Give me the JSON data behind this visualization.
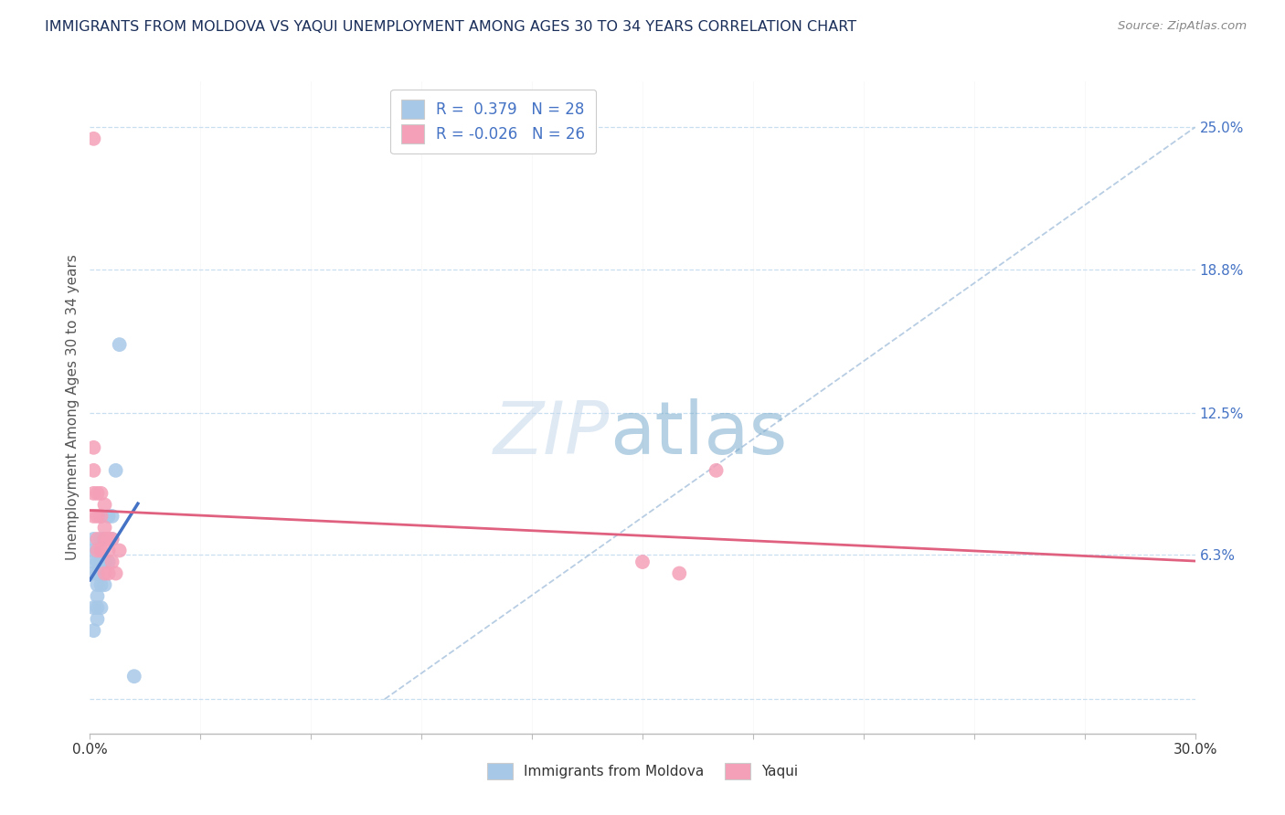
{
  "title": "IMMIGRANTS FROM MOLDOVA VS YAQUI UNEMPLOYMENT AMONG AGES 30 TO 34 YEARS CORRELATION CHART",
  "source": "Source: ZipAtlas.com",
  "ylabel": "Unemployment Among Ages 30 to 34 years",
  "xlim": [
    0.0,
    0.3
  ],
  "ylim": [
    -0.015,
    0.27
  ],
  "right_ytick_positions": [
    0.0,
    0.063,
    0.125,
    0.188,
    0.25
  ],
  "right_ytick_labels": [
    "",
    "6.3%",
    "12.5%",
    "18.8%",
    "25.0%"
  ],
  "r_moldova": 0.379,
  "n_moldova": 28,
  "r_yaqui": -0.026,
  "n_yaqui": 26,
  "color_moldova": "#a8c8e8",
  "color_yaqui": "#f4a0b8",
  "color_moldova_line": "#4472c4",
  "color_yaqui_line": "#e06080",
  "color_ref_line": "#b0c8e0",
  "background_color": "#ffffff",
  "grid_color": "#c8dff0",
  "title_color": "#1a2e5a",
  "axis_label_color": "#555555",
  "right_tick_color": "#4472c4",
  "moldova_x": [
    0.001,
    0.001,
    0.001,
    0.001,
    0.001,
    0.001,
    0.002,
    0.002,
    0.002,
    0.002,
    0.002,
    0.002,
    0.002,
    0.003,
    0.003,
    0.003,
    0.003,
    0.003,
    0.004,
    0.004,
    0.004,
    0.005,
    0.005,
    0.006,
    0.006,
    0.007,
    0.008,
    0.012
  ],
  "moldova_y": [
    0.03,
    0.04,
    0.055,
    0.06,
    0.065,
    0.07,
    0.035,
    0.04,
    0.045,
    0.05,
    0.055,
    0.06,
    0.065,
    0.04,
    0.05,
    0.06,
    0.07,
    0.08,
    0.05,
    0.06,
    0.07,
    0.06,
    0.08,
    0.07,
    0.08,
    0.1,
    0.155,
    0.01
  ],
  "yaqui_x": [
    0.001,
    0.001,
    0.001,
    0.001,
    0.001,
    0.002,
    0.002,
    0.002,
    0.002,
    0.003,
    0.003,
    0.003,
    0.004,
    0.004,
    0.004,
    0.004,
    0.005,
    0.005,
    0.005,
    0.006,
    0.006,
    0.007,
    0.008,
    0.15,
    0.16,
    0.17
  ],
  "yaqui_y": [
    0.245,
    0.08,
    0.09,
    0.1,
    0.11,
    0.08,
    0.09,
    0.065,
    0.07,
    0.09,
    0.065,
    0.08,
    0.055,
    0.07,
    0.075,
    0.085,
    0.055,
    0.065,
    0.07,
    0.06,
    0.07,
    0.055,
    0.065,
    0.06,
    0.055,
    0.1
  ],
  "ref_line_x": [
    0.08,
    0.3
  ],
  "ref_line_y": [
    0.0,
    0.25
  ]
}
